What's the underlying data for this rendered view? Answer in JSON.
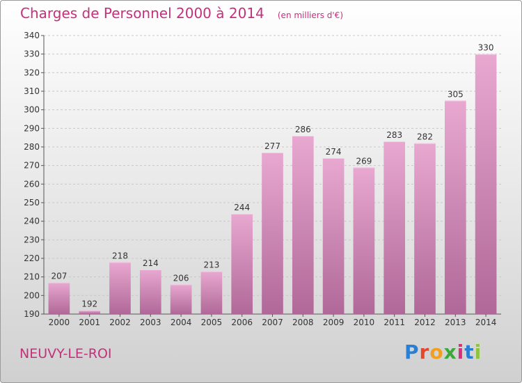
{
  "header": {
    "title": "Charges de Personnel 2000 à 2014",
    "subtitle": "(en milliers d'€)"
  },
  "footer": {
    "commune": "NEUVY-LE-ROI",
    "logo_text": "Proxiti",
    "logo_colors": [
      "#2a7fd4",
      "#e8462a",
      "#f0a020",
      "#3aa83a",
      "#d4307c",
      "#2a7fd4",
      "#8cc43a"
    ]
  },
  "colors": {
    "bar_top": "#e8a8d0",
    "bar_bottom": "#b06898",
    "accent": "#c4307c"
  },
  "chart_data": {
    "type": "bar",
    "title": "Charges de Personnel 2000 à 2014",
    "subtitle": "(en milliers d'€)",
    "categories": [
      "2000",
      "2001",
      "2002",
      "2003",
      "2004",
      "2005",
      "2006",
      "2007",
      "2008",
      "2009",
      "2010",
      "2011",
      "2012",
      "2013",
      "2014"
    ],
    "values": [
      207,
      192,
      218,
      214,
      206,
      213,
      244,
      277,
      286,
      274,
      269,
      283,
      282,
      305,
      330
    ],
    "ylim": [
      190,
      340
    ],
    "yticks": [
      190,
      200,
      210,
      220,
      230,
      240,
      250,
      260,
      270,
      280,
      290,
      300,
      310,
      320,
      330,
      340
    ],
    "grid": true,
    "data_labels": true
  }
}
